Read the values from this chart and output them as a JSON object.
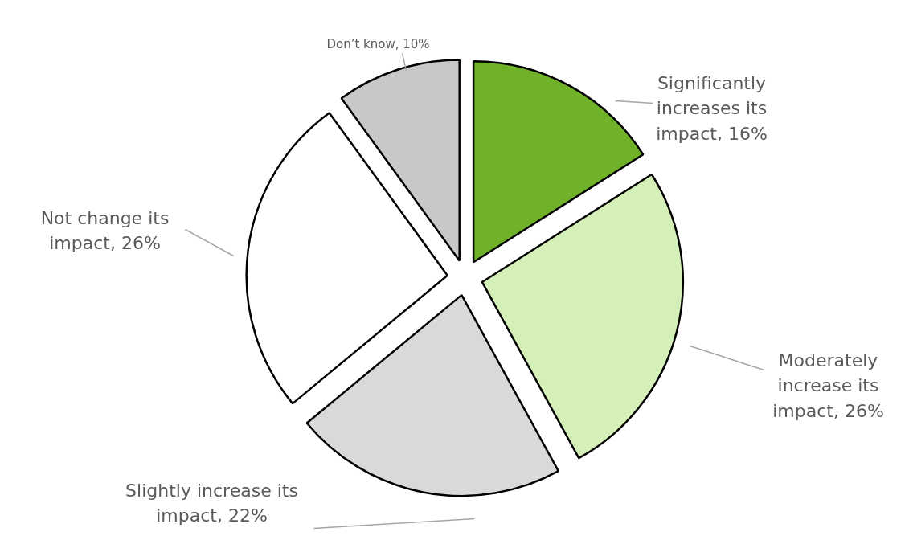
{
  "chart_data": {
    "type": "pie",
    "categories": [
      "Significantly increases its impact",
      "Moderately increase its impact",
      "Slightly increase its impact",
      "Not change its impact",
      "Don’t know"
    ],
    "values": [
      16,
      26,
      22,
      26,
      10
    ],
    "value_labels": [
      "16%",
      "26%",
      "22%",
      "26%",
      "10%"
    ],
    "colors": [
      "#70b12a",
      "#d5efb8",
      "#d9d9d9",
      "#ffffff",
      "#c8c8c8"
    ]
  }
}
